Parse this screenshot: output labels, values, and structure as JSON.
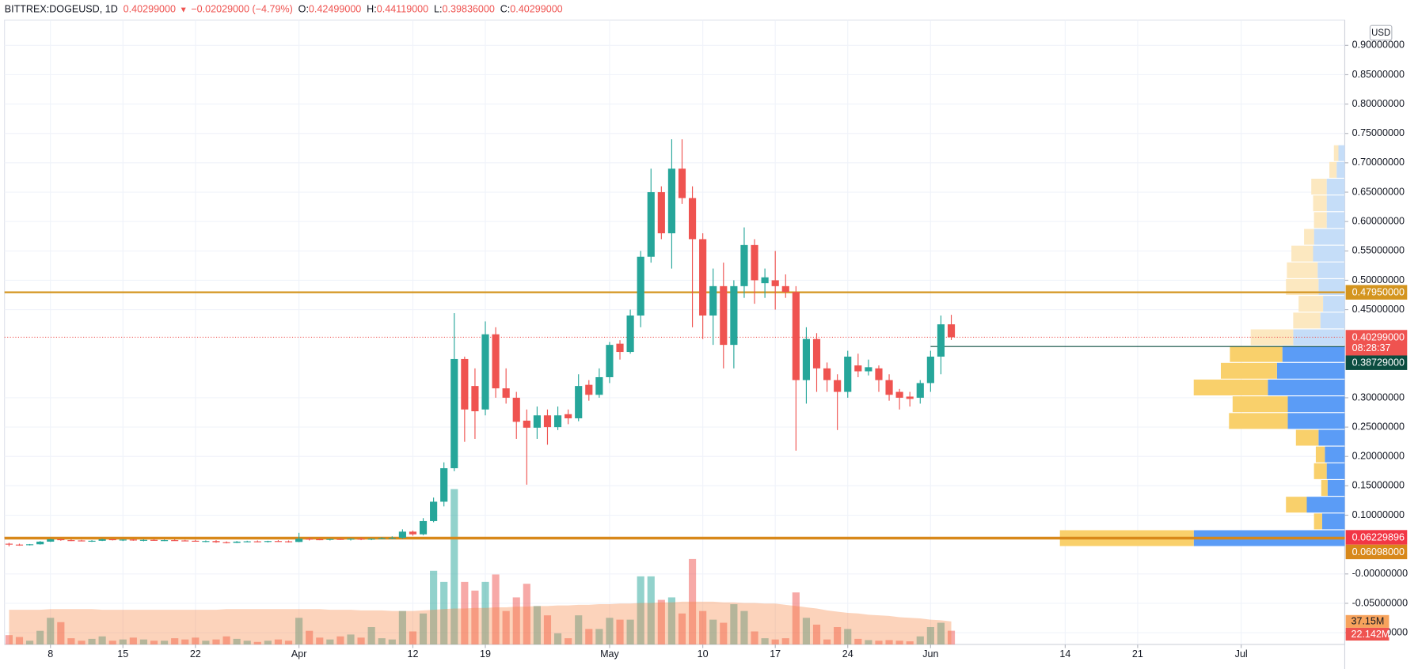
{
  "chart_data": {
    "type": "candlestick",
    "header": {
      "symbol": "BITTREX:DOGEUSD, 1D",
      "price": "0.40299000",
      "direction": "▼",
      "change": "−0.02029000 (−4.79%)",
      "ohlc": [
        {
          "label": "O:",
          "value": "0.42499000"
        },
        {
          "label": "H:",
          "value": "0.44119000"
        },
        {
          "label": "L:",
          "value": "0.39836000"
        },
        {
          "label": "C:",
          "value": "0.40299000"
        }
      ]
    },
    "currency": "USD",
    "up_color": "#26a69a",
    "down_color": "#ef5350",
    "x": [
      "03-04",
      "03-05",
      "03-06",
      "03-07",
      "03-08",
      "03-09",
      "03-10",
      "03-11",
      "03-12",
      "03-13",
      "03-14",
      "03-15",
      "03-16",
      "03-17",
      "03-18",
      "03-19",
      "03-20",
      "03-21",
      "03-22",
      "03-23",
      "03-24",
      "03-25",
      "03-26",
      "03-27",
      "03-28",
      "03-29",
      "03-30",
      "03-31",
      "04-01",
      "04-02",
      "04-03",
      "04-04",
      "04-05",
      "04-06",
      "04-07",
      "04-08",
      "04-09",
      "04-10",
      "04-11",
      "04-12",
      "04-13",
      "04-14",
      "04-15",
      "04-16",
      "04-17",
      "04-18",
      "04-19",
      "04-20",
      "04-21",
      "04-22",
      "04-23",
      "04-24",
      "04-25",
      "04-26",
      "04-27",
      "04-28",
      "04-29",
      "04-30",
      "05-01",
      "05-02",
      "05-03",
      "05-04",
      "05-05",
      "05-06",
      "05-07",
      "05-08",
      "05-09",
      "05-10",
      "05-11",
      "05-12",
      "05-13",
      "05-14",
      "05-15",
      "05-16",
      "05-17",
      "05-18",
      "05-19",
      "05-20",
      "05-21",
      "05-22",
      "05-23",
      "05-24",
      "05-25",
      "05-26",
      "05-27",
      "05-28",
      "05-29",
      "05-30",
      "05-31",
      "06-01",
      "06-02",
      "06-03"
    ],
    "open": [
      0.0515,
      0.05,
      0.0495,
      0.0505,
      0.055,
      0.059,
      0.0575,
      0.057,
      0.056,
      0.0565,
      0.059,
      0.0575,
      0.0585,
      0.057,
      0.058,
      0.057,
      0.0575,
      0.057,
      0.0565,
      0.0555,
      0.056,
      0.054,
      0.053,
      0.055,
      0.0555,
      0.055,
      0.056,
      0.0555,
      0.0545,
      0.06,
      0.059,
      0.058,
      0.0595,
      0.0585,
      0.06,
      0.0585,
      0.06,
      0.061,
      0.0615,
      0.072,
      0.0675,
      0.09,
      0.123,
      0.18,
      0.366,
      0.32,
      0.28,
      0.408,
      0.316,
      0.3,
      0.261,
      0.249,
      0.27,
      0.25,
      0.272,
      0.265,
      0.322,
      0.305,
      0.335,
      0.392,
      0.378,
      0.44,
      0.54,
      0.65,
      0.58,
      0.69,
      0.64,
      0.57,
      0.44,
      0.49,
      0.39,
      0.49,
      0.56,
      0.495,
      0.5,
      0.49,
      0.48,
      0.33,
      0.4,
      0.35,
      0.33,
      0.31,
      0.355,
      0.345,
      0.35,
      0.33,
      0.31,
      0.302,
      0.3,
      0.325,
      0.37,
      0.42499
    ],
    "high": [
      0.053,
      0.0515,
      0.051,
      0.056,
      0.06,
      0.06,
      0.059,
      0.058,
      0.0575,
      0.06,
      0.06,
      0.059,
      0.0595,
      0.059,
      0.0595,
      0.0585,
      0.059,
      0.058,
      0.058,
      0.057,
      0.0575,
      0.0555,
      0.056,
      0.0565,
      0.057,
      0.0565,
      0.0575,
      0.057,
      0.07,
      0.062,
      0.061,
      0.06,
      0.061,
      0.0605,
      0.062,
      0.0605,
      0.0625,
      0.064,
      0.076,
      0.074,
      0.095,
      0.13,
      0.19,
      0.444,
      0.37,
      0.35,
      0.43,
      0.42,
      0.35,
      0.31,
      0.28,
      0.285,
      0.28,
      0.285,
      0.28,
      0.34,
      0.33,
      0.35,
      0.395,
      0.398,
      0.45,
      0.55,
      0.69,
      0.66,
      0.74,
      0.74,
      0.66,
      0.58,
      0.52,
      0.53,
      0.5,
      0.59,
      0.57,
      0.52,
      0.55,
      0.51,
      0.49,
      0.42,
      0.41,
      0.36,
      0.34,
      0.38,
      0.375,
      0.365,
      0.355,
      0.34,
      0.315,
      0.31,
      0.33,
      0.38,
      0.44,
      0.44119
    ],
    "low": [
      0.047,
      0.048,
      0.0485,
      0.05,
      0.0545,
      0.0565,
      0.056,
      0.0555,
      0.0545,
      0.056,
      0.057,
      0.056,
      0.0565,
      0.0555,
      0.0565,
      0.056,
      0.0565,
      0.0555,
      0.055,
      0.054,
      0.053,
      0.052,
      0.0525,
      0.054,
      0.054,
      0.0535,
      0.0545,
      0.0535,
      0.054,
      0.057,
      0.0575,
      0.057,
      0.058,
      0.057,
      0.0575,
      0.0575,
      0.059,
      0.0595,
      0.06,
      0.065,
      0.066,
      0.088,
      0.115,
      0.175,
      0.225,
      0.23,
      0.27,
      0.3,
      0.29,
      0.23,
      0.152,
      0.23,
      0.22,
      0.245,
      0.255,
      0.26,
      0.295,
      0.3,
      0.325,
      0.365,
      0.375,
      0.42,
      0.53,
      0.57,
      0.52,
      0.63,
      0.42,
      0.4,
      0.39,
      0.35,
      0.35,
      0.47,
      0.46,
      0.47,
      0.45,
      0.47,
      0.21,
      0.29,
      0.31,
      0.31,
      0.245,
      0.3,
      0.335,
      0.338,
      0.31,
      0.295,
      0.28,
      0.285,
      0.29,
      0.31,
      0.34,
      0.39836
    ],
    "close": [
      0.05,
      0.0495,
      0.0505,
      0.055,
      0.059,
      0.0575,
      0.057,
      0.056,
      0.0565,
      0.059,
      0.0575,
      0.0585,
      0.057,
      0.058,
      0.057,
      0.0575,
      0.057,
      0.0565,
      0.0555,
      0.056,
      0.054,
      0.053,
      0.055,
      0.0555,
      0.055,
      0.056,
      0.0555,
      0.0545,
      0.06,
      0.059,
      0.058,
      0.0595,
      0.0585,
      0.06,
      0.0585,
      0.06,
      0.061,
      0.0615,
      0.072,
      0.0675,
      0.09,
      0.123,
      0.18,
      0.366,
      0.28,
      0.277,
      0.408,
      0.316,
      0.3,
      0.259,
      0.249,
      0.27,
      0.25,
      0.27,
      0.265,
      0.32,
      0.305,
      0.335,
      0.39,
      0.378,
      0.44,
      0.54,
      0.65,
      0.58,
      0.69,
      0.64,
      0.57,
      0.44,
      0.49,
      0.39,
      0.49,
      0.56,
      0.5,
      0.505,
      0.49,
      0.48,
      0.33,
      0.4,
      0.35,
      0.33,
      0.31,
      0.37,
      0.345,
      0.352,
      0.33,
      0.305,
      0.3,
      0.298,
      0.325,
      0.37,
      0.425,
      0.40299
    ],
    "volume": [
      15,
      12,
      6,
      22,
      43,
      36,
      10,
      6,
      9,
      13,
      6,
      8,
      11,
      8,
      6,
      6,
      10,
      8,
      11,
      6,
      8,
      13,
      9,
      6,
      4,
      6,
      8,
      6,
      43,
      22,
      11,
      8,
      13,
      16,
      11,
      28,
      10,
      8,
      54,
      21,
      50,
      119,
      101,
      251,
      101,
      87,
      101,
      113,
      54,
      76,
      98,
      62,
      47,
      18,
      10,
      47,
      25,
      25,
      43,
      40,
      40,
      110,
      110,
      72,
      76,
      50,
      138,
      54,
      40,
      35,
      65,
      54,
      21,
      10,
      8,
      10,
      84,
      43,
      32,
      8,
      28,
      25,
      9,
      7,
      6,
      7,
      6,
      5,
      13,
      28,
      35,
      22.142
    ],
    "volume_ma": [
      56,
      56,
      56,
      56,
      57,
      57,
      57,
      57,
      57,
      56,
      56,
      56,
      56,
      56,
      56,
      56,
      56,
      56,
      56,
      56,
      56,
      57,
      57,
      57,
      57,
      57,
      57,
      57,
      57,
      57,
      57,
      56,
      56,
      56,
      55,
      55,
      55,
      54,
      54,
      54,
      55,
      56,
      57,
      58,
      58,
      59,
      59,
      60,
      60,
      61,
      61,
      62,
      62,
      63,
      63,
      64,
      64,
      65,
      65,
      66,
      66,
      67,
      67,
      68,
      68,
      69,
      69,
      69,
      69,
      68,
      68,
      67,
      67,
      66,
      66,
      64,
      62,
      60,
      58,
      55,
      53,
      51,
      50,
      48,
      47,
      46,
      44,
      43,
      42,
      40,
      39,
      37.15
    ],
    "volume_color_up": "rgba(38,166,154,0.5)",
    "volume_color_down": "rgba(239,83,80,0.5)",
    "volume_ma_color": "rgba(247,130,60,0.35)",
    "volume_ylim": [
      0,
      300
    ],
    "volume_badges": [
      {
        "value": 37.15,
        "label": "37.15M",
        "color": "#f7a35c",
        "text_color": "#131722"
      },
      {
        "value": 22.142,
        "label": "22.142M",
        "color": "#ef5350",
        "text_color": "#ffffff"
      }
    ],
    "xlim": [
      "03-04",
      "07-11"
    ],
    "xticks": [
      {
        "value": "03-08",
        "label": "8"
      },
      {
        "value": "03-15",
        "label": "15"
      },
      {
        "value": "03-22",
        "label": "22"
      },
      {
        "value": "04-01",
        "label": "Apr"
      },
      {
        "value": "04-12",
        "label": "12"
      },
      {
        "value": "04-19",
        "label": "19"
      },
      {
        "value": "05-01",
        "label": "May"
      },
      {
        "value": "05-10",
        "label": "10"
      },
      {
        "value": "05-17",
        "label": "17"
      },
      {
        "value": "05-24",
        "label": "24"
      },
      {
        "value": "06-01",
        "label": "Jun"
      },
      {
        "value": "06-14",
        "label": "14"
      },
      {
        "value": "06-21",
        "label": "21"
      },
      {
        "value": "07-01",
        "label": "Jul"
      }
    ],
    "ylim": [
      -0.12,
      0.94
    ],
    "yticks": [
      {
        "value": 0.9,
        "label": "0.90000000"
      },
      {
        "value": 0.85,
        "label": "0.85000000"
      },
      {
        "value": 0.8,
        "label": "0.80000000"
      },
      {
        "value": 0.75,
        "label": "0.75000000"
      },
      {
        "value": 0.7,
        "label": "0.70000000"
      },
      {
        "value": 0.65,
        "label": "0.65000000"
      },
      {
        "value": 0.6,
        "label": "0.60000000"
      },
      {
        "value": 0.55,
        "label": "0.55000000"
      },
      {
        "value": 0.5,
        "label": "0.50000000"
      },
      {
        "value": 0.45,
        "label": "0.45000000"
      },
      {
        "value": 0.3,
        "label": "0.30000000"
      },
      {
        "value": 0.25,
        "label": "0.25000000"
      },
      {
        "value": 0.2,
        "label": "0.20000000"
      },
      {
        "value": 0.15,
        "label": "0.15000000"
      },
      {
        "value": 0.1,
        "label": "0.10000000"
      },
      {
        "value": 0,
        "label": "-0.00000000"
      },
      {
        "value": -0.05,
        "label": "-0.05000000"
      },
      {
        "value": -0.1,
        "label": "-0.10000000"
      }
    ],
    "grid": true,
    "price_lines": [
      {
        "value": 0.4795,
        "label": "0.47950000",
        "color": "#d4951f",
        "style": "solid",
        "width": 2
      },
      {
        "value": 0.40299,
        "label": "0.40299000",
        "color": "#ef5350",
        "style": "dotted",
        "width": 1,
        "countdown": "08:28:37"
      },
      {
        "value": 0.38729,
        "label": "0.38729000",
        "color": "#0b4d40",
        "style": "solid",
        "width": 1,
        "from": "06-01"
      },
      {
        "value": 0.06229896,
        "label": "0.06229896",
        "color": "#f23645",
        "style": "solid",
        "width": 1
      },
      {
        "value": 0.06098,
        "label": "0.06098000",
        "color": "#d8881a",
        "style": "solid",
        "width": 3
      }
    ],
    "profile": {
      "row_low": [
        0.0467,
        0.0752,
        0.1037,
        0.1322,
        0.1607,
        0.1892,
        0.2177,
        0.2462,
        0.2747,
        0.3032,
        0.3317,
        0.3602,
        0.3887,
        0.4172,
        0.4457,
        0.4742,
        0.5027,
        0.5312,
        0.5597,
        0.5882,
        0.6167,
        0.6452,
        0.6737,
        0.7022
      ],
      "row_size": 0.0285,
      "up": [
        167,
        25,
        42,
        19,
        20,
        22,
        29,
        63,
        63,
        85,
        75,
        69,
        57,
        27,
        24,
        29,
        30,
        35,
        34,
        20,
        20,
        20,
        9,
        7
      ],
      "down": [
        148,
        9,
        23,
        7,
        14,
        10,
        25,
        65,
        61,
        82,
        62,
        58,
        47,
        30,
        27,
        36,
        34,
        24,
        11,
        14,
        15,
        17,
        8,
        5
      ],
      "xlim": [
        0,
        320
      ],
      "value_area": [
        0.0467,
        0.3887
      ],
      "up_color": "#5b9cf6",
      "down_color": "#f9d06b",
      "up_color_outside": "#c5ddf8",
      "down_color_outside": "#fce8c0"
    }
  }
}
